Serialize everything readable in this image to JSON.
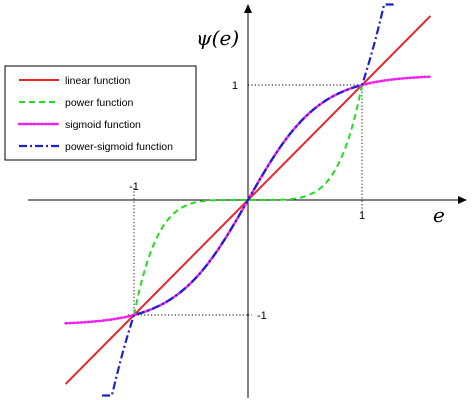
{
  "chart_data": {
    "type": "line",
    "ylabel": "ψ(e)",
    "xlabel": "e",
    "xlim": [
      -1.95,
      1.9
    ],
    "ylim": [
      -1.7,
      1.7
    ],
    "ticks": {
      "x": [
        {
          "value": -1,
          "label": "-1"
        },
        {
          "value": 1,
          "label": "1"
        }
      ],
      "y": [
        {
          "value": 1,
          "label": "1"
        },
        {
          "value": -1,
          "label": "-1"
        }
      ]
    },
    "grid": false,
    "guide_lines": "dotted lines at x = ±1 and y = ±1",
    "legend": {
      "position": "top-left"
    },
    "series": [
      {
        "name": "linear function",
        "color": "#e8262a",
        "style": "solid",
        "x": [
          -1.6,
          -1.2,
          -0.8,
          -0.4,
          0,
          0.4,
          0.8,
          1.2,
          1.6
        ],
        "y": [
          -1.6,
          -1.2,
          -0.8,
          -0.4,
          0,
          0.4,
          0.8,
          1.2,
          1.6
        ]
      },
      {
        "name": "power function",
        "color": "#22dd22",
        "style": "dashed",
        "x": [
          -1.0,
          -0.9,
          -0.8,
          -0.7,
          -0.6,
          -0.5,
          -0.4,
          -0.3,
          -0.2,
          -0.1,
          0,
          0.1,
          0.2,
          0.3,
          0.4,
          0.5,
          0.6,
          0.7,
          0.8,
          0.9,
          1.0
        ],
        "y": [
          -1.0,
          -0.59,
          -0.33,
          -0.17,
          -0.08,
          -0.03,
          -0.01,
          0,
          0,
          0,
          0,
          0,
          0,
          0,
          0.01,
          0.03,
          0.08,
          0.17,
          0.33,
          0.59,
          1.0
        ]
      },
      {
        "name": "sigmoid function",
        "color": "#ee22ee",
        "style": "dotted",
        "x": [
          -1.6,
          -1.4,
          -1.2,
          -1.0,
          -0.8,
          -0.6,
          -0.4,
          -0.2,
          0,
          0.2,
          0.4,
          0.6,
          0.8,
          1.0,
          1.2,
          1.4,
          1.6
        ],
        "y": [
          -1.1,
          -1.09,
          -1.07,
          -1.0,
          -0.91,
          -0.75,
          -0.53,
          -0.27,
          0,
          0.27,
          0.53,
          0.75,
          0.91,
          1.0,
          1.07,
          1.09,
          1.1
        ]
      },
      {
        "name": "power-sigmoid function",
        "color": "#1a22cc",
        "style": "dashdot",
        "x": [
          -1.28,
          -1.2,
          -1.1,
          -1.0,
          -0.8,
          -0.6,
          -0.4,
          -0.2,
          0,
          0.2,
          0.4,
          0.6,
          0.8,
          1.0,
          1.1,
          1.2,
          1.28
        ],
        "y": [
          -1.7,
          -1.49,
          -1.24,
          -1.0,
          -0.91,
          -0.75,
          -0.53,
          -0.27,
          0,
          0.27,
          0.53,
          0.75,
          0.91,
          1.0,
          1.24,
          1.49,
          1.7
        ]
      }
    ]
  }
}
